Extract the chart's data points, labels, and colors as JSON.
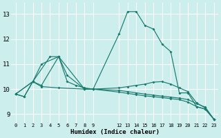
{
  "bg_color": "#cceeed",
  "grid_color": "#ffffff",
  "line_color": "#1a7a6e",
  "xlabel": "Humidex (Indice chaleur)",
  "xlim": [
    -0.5,
    23.5
  ],
  "ylim": [
    8.65,
    13.45
  ],
  "yticks": [
    9,
    10,
    11,
    12,
    13
  ],
  "xtick_positions": [
    0,
    1,
    2,
    3,
    4,
    5,
    6,
    7,
    8,
    9,
    12,
    13,
    14,
    15,
    16,
    17,
    18,
    19,
    20,
    21,
    22,
    23
  ],
  "grid_xticks": [
    0,
    1,
    2,
    3,
    4,
    5,
    6,
    7,
    8,
    9,
    10,
    11,
    12,
    13,
    14,
    15,
    16,
    17,
    18,
    19,
    20,
    21,
    22,
    23
  ],
  "curves": [
    {
      "x": [
        0,
        1,
        2,
        3,
        5,
        6,
        8,
        9,
        12,
        13,
        14,
        15,
        16,
        17,
        18,
        19,
        20,
        21,
        22,
        23
      ],
      "y": [
        9.8,
        9.7,
        10.3,
        11.0,
        11.3,
        10.55,
        10.0,
        10.0,
        12.2,
        13.1,
        13.1,
        12.55,
        12.4,
        11.8,
        11.5,
        9.85,
        9.85,
        9.3,
        9.2,
        8.8
      ]
    },
    {
      "x": [
        0,
        1,
        2,
        4,
        5,
        6,
        7,
        8,
        9,
        12,
        13,
        14,
        15,
        16,
        17,
        18,
        19,
        20,
        21,
        22,
        23
      ],
      "y": [
        9.8,
        9.7,
        10.3,
        11.3,
        11.3,
        10.3,
        10.15,
        10.05,
        10.0,
        10.05,
        10.1,
        10.15,
        10.2,
        10.28,
        10.3,
        10.2,
        10.05,
        9.9,
        9.45,
        9.25,
        8.8
      ]
    },
    {
      "x": [
        0,
        2,
        3,
        5,
        8,
        9,
        12,
        13,
        14,
        15,
        16,
        17,
        18,
        19,
        20,
        21,
        22,
        23
      ],
      "y": [
        9.8,
        10.3,
        10.1,
        10.05,
        10.0,
        10.0,
        9.95,
        9.9,
        9.85,
        9.8,
        9.76,
        9.72,
        9.68,
        9.64,
        9.58,
        9.42,
        9.28,
        8.8
      ]
    },
    {
      "x": [
        0,
        2,
        3,
        5,
        8,
        9,
        12,
        13,
        14,
        15,
        16,
        17,
        18,
        19,
        20,
        21,
        22,
        23
      ],
      "y": [
        9.8,
        10.3,
        10.15,
        11.3,
        10.0,
        10.0,
        9.88,
        9.83,
        9.78,
        9.73,
        9.7,
        9.66,
        9.62,
        9.58,
        9.48,
        9.3,
        9.2,
        8.8
      ]
    }
  ]
}
